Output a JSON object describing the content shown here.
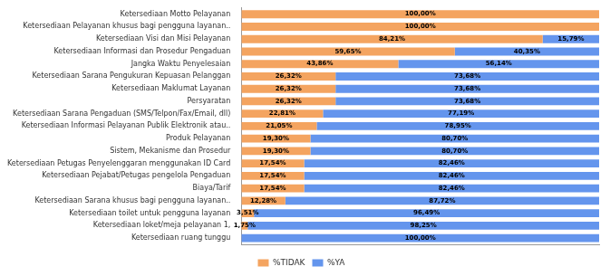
{
  "chart_data": {
    "type": "bar",
    "orientation": "horizontal",
    "stacked": true,
    "categories": [
      "Ketersediaan ruang tunggu",
      "Ketersediaan loket/meja pelayanan 1,",
      "Ketersediaan toilet untuk pengguna layanan",
      "Ketersediaan Sarana khusus bagi pengguna layanan..",
      "Biaya/Tarif",
      "Ketersediaan Pejabat/Petugas pengelola Pengaduan",
      "Ketersediaan Petugas Penyelenggaran menggunakan ID Card",
      "Sistem, Mekanisme dan Prosedur",
      "Produk Pelayanan",
      "Ketersediaan Informasi Pelayanan Publik Elektronik atau..",
      "Ketersediaan Sarana Pengaduan (SMS/Telpon/Fax/Email, dll)",
      "Persyaratan",
      "Ketersediaan Maklumat Layanan",
      "Ketersediaan Sarana Pengukuran Kepuasan Pelanggan",
      "Jangka Waktu Penyelesaian",
      "Ketersediaan Informasi dan Prosedur Pengaduan",
      "Ketersediaan Visi dan Misi Pelayanan",
      "Ketersediaan Pelayanan khusus bagi pengguna layanan..",
      "Ketersediaan Motto Pelayanan"
    ],
    "series": [
      {
        "name": "%TIDAK",
        "color": "#F4A460",
        "values": [
          0.0,
          1.75,
          3.51,
          12.28,
          17.54,
          17.54,
          17.54,
          19.3,
          19.3,
          21.05,
          22.81,
          26.32,
          26.32,
          26.32,
          43.86,
          59.65,
          84.21,
          100.0,
          100.0
        ],
        "value_labels": [
          null,
          "1,75%",
          "3,51%",
          "12,28%",
          "17,54%",
          "17,54%",
          "17,54%",
          "19,30%",
          "19,30%",
          "21,05%",
          "22,81%",
          "26,32%",
          "26,32%",
          "26,32%",
          "43,86%",
          "59,65%",
          "84,21%",
          "100,00%",
          "100,00%"
        ]
      },
      {
        "name": "%YA",
        "color": "#6495ED",
        "values": [
          100.0,
          98.25,
          96.49,
          87.72,
          82.46,
          82.46,
          82.46,
          80.7,
          80.7,
          78.95,
          77.19,
          73.68,
          73.68,
          73.68,
          56.14,
          40.35,
          15.79,
          0.0,
          0.0
        ],
        "value_labels": [
          "100,00%",
          "98,25%",
          "96,49%",
          "87,72%",
          "82,46%",
          "82,46%",
          "82,46%",
          "80,70%",
          "80,70%",
          "78,95%",
          "77,19%",
          "73,68%",
          "73,68%",
          "73,68%",
          "56,14%",
          "40,35%",
          "15,79%",
          null,
          null
        ]
      }
    ],
    "xlim": [
      0,
      100
    ],
    "tick_labels": "y",
    "grid": false,
    "legend": "bottom",
    "data_labels": true
  }
}
